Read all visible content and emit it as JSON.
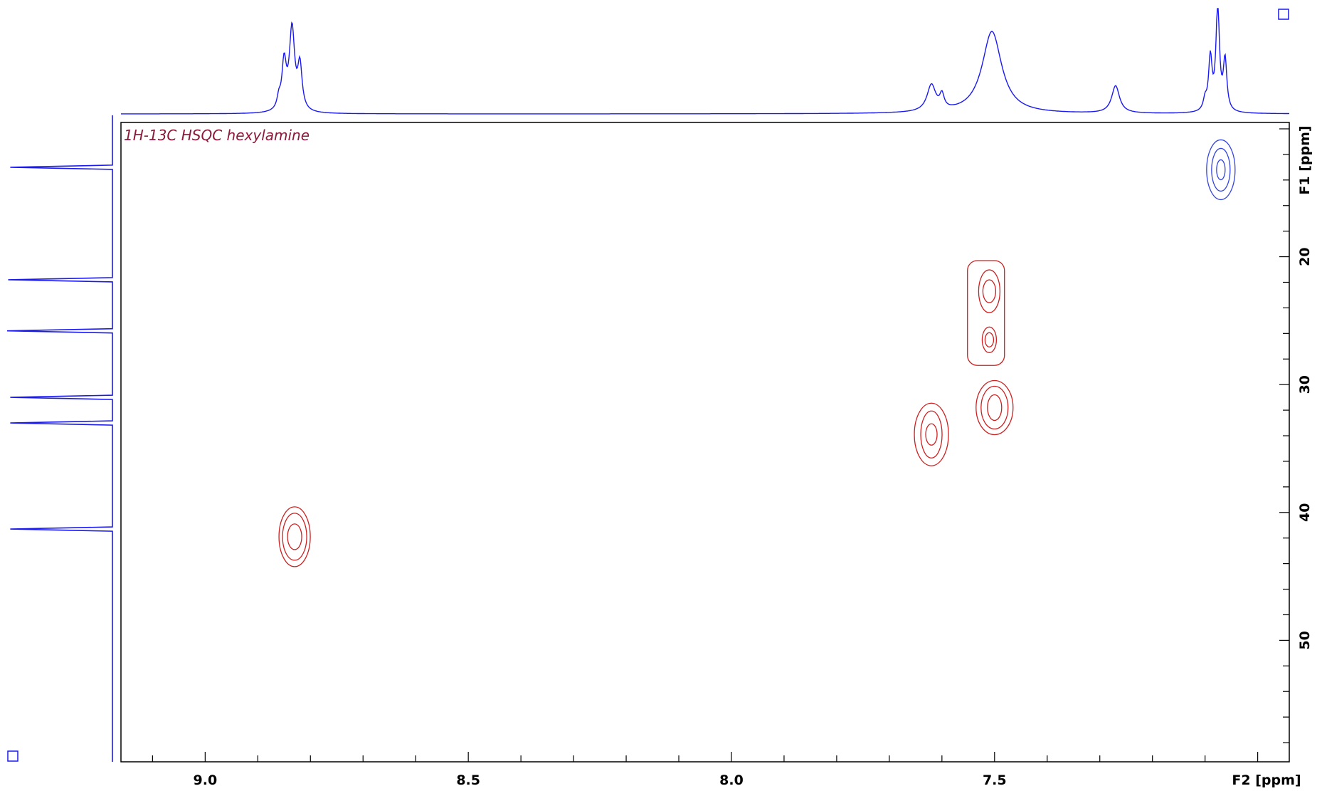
{
  "chart_data": {
    "type": "contour",
    "title": "1H-13C HSQC hexylamine",
    "xlabel": "F2 [ppm]",
    "ylabel": "F1 [ppm]",
    "xlim": [
      9.16,
      6.94
    ],
    "ylim": [
      9.5,
      59.5
    ],
    "x_ticks": [
      {
        "value": 9.0,
        "label": "9.0"
      },
      {
        "value": 8.5,
        "label": "8.5"
      },
      {
        "value": 8.0,
        "label": "8.0"
      },
      {
        "value": 7.5,
        "label": "7.5"
      }
    ],
    "y_ticks": [
      {
        "value": 20,
        "label": "20"
      },
      {
        "value": 30,
        "label": "30"
      },
      {
        "value": 40,
        "label": "40"
      },
      {
        "value": 50,
        "label": "50"
      }
    ],
    "colors": {
      "positive": "#cc2020",
      "negative": "#3344dd",
      "projection": "#1a1aee",
      "frame": "#000000",
      "title": "#8b1a3a"
    },
    "cross_peaks": [
      {
        "f2": 8.83,
        "f1": 41.9,
        "sign": "positive"
      },
      {
        "f2": 7.62,
        "f1": 33.9,
        "sign": "positive"
      },
      {
        "f2": 7.5,
        "f1": 31.8,
        "sign": "positive"
      },
      {
        "f2": 7.51,
        "f1": 22.7,
        "sign": "positive"
      },
      {
        "f2": 7.51,
        "f1": 26.5,
        "sign": "positive"
      },
      {
        "f2": 7.07,
        "f1": 13.2,
        "sign": "negative"
      }
    ],
    "f2_projection_peaks": [
      {
        "ppm": 8.835,
        "height": 0.78,
        "width": 0.012
      },
      {
        "ppm": 8.85,
        "height": 0.45,
        "width": 0.01
      },
      {
        "ppm": 8.82,
        "height": 0.42,
        "width": 0.01
      },
      {
        "ppm": 8.86,
        "height": 0.1,
        "width": 0.008
      },
      {
        "ppm": 7.62,
        "height": 0.25,
        "width": 0.02
      },
      {
        "ppm": 7.6,
        "height": 0.13,
        "width": 0.01
      },
      {
        "ppm": 7.505,
        "height": 0.78,
        "width": 0.045
      },
      {
        "ppm": 7.27,
        "height": 0.26,
        "width": 0.018
      },
      {
        "ppm": 7.076,
        "height": 1.0,
        "width": 0.008
      },
      {
        "ppm": 7.09,
        "height": 0.5,
        "width": 0.008
      },
      {
        "ppm": 7.062,
        "height": 0.48,
        "width": 0.008
      },
      {
        "ppm": 7.1,
        "height": 0.1,
        "width": 0.008
      }
    ],
    "f1_projection_peaks": [
      {
        "ppm": 13.0,
        "height": 0.97
      },
      {
        "ppm": 21.8,
        "height": 0.99
      },
      {
        "ppm": 25.8,
        "height": 1.0
      },
      {
        "ppm": 31.0,
        "height": 0.97
      },
      {
        "ppm": 33.0,
        "height": 0.97
      },
      {
        "ppm": 41.3,
        "height": 0.97
      }
    ]
  }
}
